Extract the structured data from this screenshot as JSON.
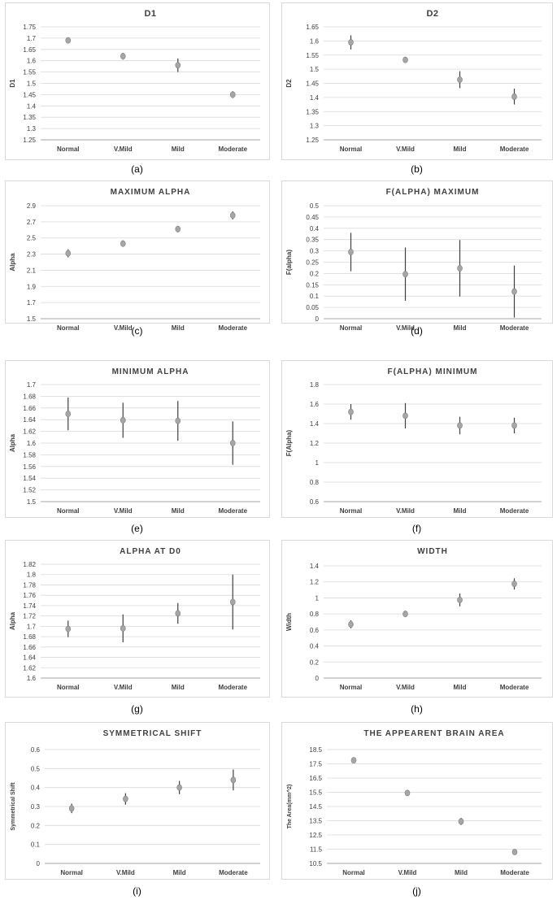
{
  "chart_data": [
    {
      "type": "scatter",
      "caption": "(a)",
      "title": "D1",
      "ylabel": "D1",
      "xlabel": "",
      "categories": [
        "Normal",
        "V.Mild",
        "Mild",
        "Moderate"
      ],
      "ylim": [
        1.25,
        1.75
      ],
      "yticks": [
        "1.25",
        "1.3",
        "1.35",
        "1.4",
        "1.45",
        "1.5",
        "1.55",
        "1.6",
        "1.65",
        "1.7",
        "1.75"
      ],
      "values": [
        1.69,
        1.62,
        1.58,
        1.45
      ],
      "errors": [
        0.01,
        0.015,
        0.03,
        0.015
      ],
      "title_style": "plain",
      "grid": true
    },
    {
      "type": "scatter",
      "caption": "(b)",
      "title": "D2",
      "ylabel": "D2",
      "xlabel": "",
      "categories": [
        "Normal",
        "V.Mild",
        "Mild",
        "Moderate"
      ],
      "ylim": [
        1.25,
        1.65
      ],
      "yticks": [
        "1.25",
        "1.3",
        "1.35",
        "1.4",
        "1.45",
        "1.5",
        "1.55",
        "1.6",
        "1.65"
      ],
      "values": [
        1.595,
        1.533,
        1.463,
        1.403
      ],
      "errors": [
        0.025,
        0.01,
        0.03,
        0.028
      ],
      "title_style": "plain",
      "grid": true
    },
    {
      "type": "scatter",
      "caption": "(c)",
      "title": "MAXIMUM ALPHA",
      "ylabel": "Alpha",
      "xlabel": "",
      "categories": [
        "Normal",
        "V.Mild",
        "Mild",
        "Moderate"
      ],
      "ylim": [
        1.5,
        2.9
      ],
      "yticks": [
        "1.5",
        "1.7",
        "1.9",
        "2.1",
        "2.3",
        "2.5",
        "2.7",
        "2.9"
      ],
      "values": [
        2.31,
        2.43,
        2.61,
        2.78
      ],
      "errors": [
        0.05,
        0.04,
        0.04,
        0.05
      ],
      "title_style": "caps",
      "grid": true
    },
    {
      "type": "scatter",
      "caption": "(d)",
      "title": "F(ALPHA)  MAXIMUM",
      "ylabel": "F(alpha)",
      "xlabel": "",
      "categories": [
        "Normal",
        "V.Mild",
        "Mild",
        "Moderate"
      ],
      "ylim": [
        0,
        0.5
      ],
      "yticks": [
        "0",
        "0.05",
        "0.1",
        "0.15",
        "0.2",
        "0.25",
        "0.3",
        "0.35",
        "0.4",
        "0.45",
        "0.5"
      ],
      "values": [
        0.295,
        0.197,
        0.223,
        0.12
      ],
      "errors": [
        0.085,
        0.118,
        0.125,
        0.115
      ],
      "title_style": "caps",
      "grid": true
    },
    {
      "type": "scatter",
      "caption": "(e)",
      "title": "MINIMUM ALPHA",
      "ylabel": "Alpha",
      "xlabel": "",
      "categories": [
        "Normal",
        "V.Mild",
        "Mild",
        "Moderate"
      ],
      "ylim": [
        1.5,
        1.7
      ],
      "yticks": [
        "1.5",
        "1.52",
        "1.54",
        "1.56",
        "1.58",
        "1.6",
        "1.62",
        "1.64",
        "1.66",
        "1.68",
        "1.7"
      ],
      "values": [
        1.65,
        1.639,
        1.638,
        1.6
      ],
      "errors": [
        0.028,
        0.03,
        0.034,
        0.037
      ],
      "title_style": "caps",
      "grid": true
    },
    {
      "type": "scatter",
      "caption": "(f)",
      "title": "F(ALPHA) MINIMUM",
      "ylabel": "F(Alpha)",
      "xlabel": "",
      "categories": [
        "Normal",
        "V.Mild",
        "Mild",
        "Moderate"
      ],
      "ylim": [
        0.6,
        1.8
      ],
      "yticks": [
        "0.6",
        "0.8",
        "1",
        "1.2",
        "1.4",
        "1.6",
        "1.8"
      ],
      "values": [
        1.52,
        1.48,
        1.38,
        1.38
      ],
      "errors": [
        0.08,
        0.13,
        0.09,
        0.08
      ],
      "title_style": "caps",
      "grid": true
    },
    {
      "type": "scatter",
      "caption": "(g)",
      "title": "ALPHA AT D0",
      "ylabel": "Alpha",
      "xlabel": "",
      "categories": [
        "Normal",
        "V.Mild",
        "Mild",
        "Moderate"
      ],
      "ylim": [
        1.6,
        1.82
      ],
      "yticks": [
        "1.6",
        "1.62",
        "1.64",
        "1.66",
        "1.68",
        "1.7",
        "1.72",
        "1.74",
        "1.76",
        "1.78",
        "1.8",
        "1.82"
      ],
      "values": [
        1.695,
        1.696,
        1.725,
        1.747
      ],
      "errors": [
        0.016,
        0.027,
        0.02,
        0.053
      ],
      "title_style": "caps",
      "grid": true
    },
    {
      "type": "scatter",
      "caption": "(h)",
      "title": "WIDTH",
      "ylabel": "Width",
      "xlabel": "",
      "categories": [
        "Normal",
        "V.Mild",
        "Mild",
        "Moderate"
      ],
      "ylim": [
        0,
        1.4
      ],
      "yticks": [
        "0",
        "0.2",
        "0.4",
        "0.6",
        "0.8",
        "1",
        "1.2",
        "1.4"
      ],
      "values": [
        0.67,
        0.8,
        0.975,
        1.175
      ],
      "errors": [
        0.05,
        0.04,
        0.08,
        0.07
      ],
      "title_style": "caps",
      "grid": true
    },
    {
      "type": "scatter",
      "caption": "(i)",
      "title": "SYMMETRICAL SHIFT",
      "ylabel": "Symmetrical Shift",
      "xlabel": "",
      "categories": [
        "Normal",
        "V.Mild",
        "Mild",
        "Moderate"
      ],
      "ylim": [
        0,
        0.6
      ],
      "yticks": [
        "0",
        "0.1",
        "0.2",
        "0.3",
        "0.4",
        "0.5",
        "0.6"
      ],
      "values": [
        0.29,
        0.34,
        0.4,
        0.44
      ],
      "errors": [
        0.025,
        0.03,
        0.035,
        0.055
      ],
      "title_style": "caps",
      "grid": true
    },
    {
      "type": "scatter",
      "caption": "(j)",
      "title": "THE APPEARENT BRAIN AREA",
      "ylabel": "The Area(mm^2)",
      "xlabel": "",
      "categories": [
        "Normal",
        "V.Mild",
        "Mild",
        "Moderate"
      ],
      "ylim": [
        10.5,
        18.5
      ],
      "yticks": [
        "10.5",
        "11.5",
        "12.5",
        "13.5",
        "14.5",
        "15.5",
        "16.5",
        "17.5",
        "18.5"
      ],
      "values": [
        17.75,
        15.45,
        13.45,
        11.3
      ],
      "errors": [
        0.08,
        0.2,
        0.25,
        0.18
      ],
      "title_style": "caps",
      "grid": true
    }
  ],
  "colors": {
    "marker": "#a6a6a6",
    "marker_edge": "#7f7f7f",
    "errorbar": "#404040",
    "grid": "#d9d9d9",
    "axis": "#a6a6a6",
    "text": "#404040",
    "title": "#404040"
  }
}
